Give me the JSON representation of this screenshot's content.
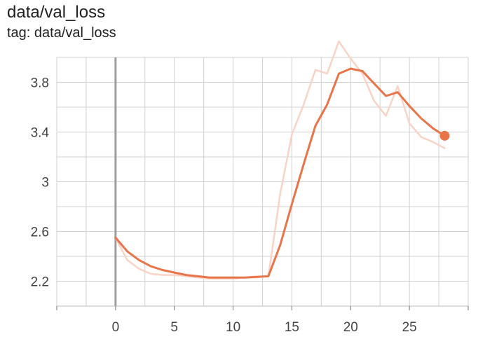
{
  "title": "data/val_loss",
  "subtitle": "tag: data/val_loss",
  "chart_data": {
    "type": "line",
    "xlim": [
      -5,
      30
    ],
    "ylim": [
      2.0,
      4.0
    ],
    "x_ticks": [
      0,
      5,
      10,
      15,
      20,
      25
    ],
    "y_ticks": [
      2.2,
      2.6,
      3,
      3.4,
      3.8
    ],
    "y_tick_labels": [
      "2.2",
      "2.6",
      "3",
      "3.4",
      "3.8"
    ],
    "grid": true,
    "series": [
      {
        "role": "raw",
        "color": "#f9d4c6",
        "x": [
          0,
          1,
          2,
          3,
          4,
          5,
          6,
          7,
          8,
          9,
          10,
          11,
          12,
          13,
          14,
          15,
          16,
          17,
          18,
          19,
          20,
          21,
          22,
          23,
          24,
          25,
          26,
          27,
          28
        ],
        "y": [
          2.55,
          2.37,
          2.3,
          2.26,
          2.25,
          2.25,
          2.24,
          2.23,
          2.22,
          2.22,
          2.22,
          2.23,
          2.23,
          2.24,
          2.9,
          3.38,
          3.62,
          3.9,
          3.87,
          4.13,
          3.99,
          3.87,
          3.65,
          3.53,
          3.77,
          3.47,
          3.36,
          3.32,
          3.27
        ]
      },
      {
        "role": "smoothed",
        "color": "#e8744a",
        "x": [
          0,
          1,
          2,
          3,
          4,
          5,
          6,
          7,
          8,
          9,
          10,
          11,
          12,
          13,
          14,
          15,
          16,
          17,
          18,
          19,
          20,
          21,
          22,
          23,
          24,
          25,
          26,
          27,
          28
        ],
        "y": [
          2.55,
          2.44,
          2.37,
          2.32,
          2.29,
          2.27,
          2.25,
          2.24,
          2.23,
          2.23,
          2.23,
          2.23,
          2.235,
          2.24,
          2.49,
          2.82,
          3.14,
          3.45,
          3.62,
          3.87,
          3.91,
          3.89,
          3.79,
          3.69,
          3.72,
          3.61,
          3.51,
          3.43,
          3.37
        ]
      }
    ]
  }
}
